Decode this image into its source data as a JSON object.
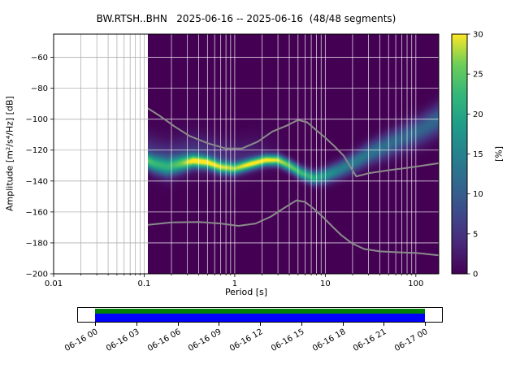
{
  "chart_data": {
    "type": "heatmap",
    "subtype": "ppsd-probabilistic-power-spectral-density",
    "title": "BW.RTSH..BHN   2025-06-16 -- 2025-06-16  (48/48 segments)",
    "station": "BW.RTSH..BHN",
    "date_start": "2025-06-16",
    "date_end": "2025-06-16",
    "segments": "48/48",
    "xlabel": "Period [s]",
    "ylabel": "Amplitude [m²/s⁴/Hz] [dB]",
    "xscale": "log",
    "xlim": [
      0.01,
      179
    ],
    "ylim": [
      -200,
      -45
    ],
    "x_ticks": [
      0.01,
      0.1,
      1,
      10,
      100
    ],
    "x_tick_labels": [
      "0.01",
      "0.1",
      "1",
      "10",
      "100"
    ],
    "y_ticks": [
      -60,
      -80,
      -100,
      -120,
      -140,
      -160,
      -180,
      -200
    ],
    "y_tick_labels": [
      "−60",
      "−80",
      "−100",
      "−120",
      "−140",
      "−160",
      "−180",
      "−200"
    ],
    "grid": true,
    "background_value_color": "#440154",
    "colorbar": {
      "label": "[%]",
      "range": [
        0,
        30
      ],
      "ticks": [
        0,
        5,
        10,
        15,
        20,
        25,
        30
      ],
      "colormap": "viridis",
      "stops": [
        [
          0,
          "#440154"
        ],
        [
          0.125,
          "#482878"
        ],
        [
          0.25,
          "#3e4989"
        ],
        [
          0.375,
          "#31688e"
        ],
        [
          0.5,
          "#26828e"
        ],
        [
          0.625,
          "#1f9e89"
        ],
        [
          0.75,
          "#35b779"
        ],
        [
          0.875,
          "#6ece58"
        ],
        [
          1,
          "#fde725"
        ]
      ]
    },
    "psd_distribution": {
      "comment": "mode ridge of the 2D histogram: [period_s, mode_dB, sigma_dB, peak_percent]",
      "start_period": 0.11,
      "points": [
        [
          0.1,
          -126.0,
          3.2,
          22
        ],
        [
          0.13,
          -129.0,
          3.8,
          19
        ],
        [
          0.18,
          -131.0,
          4.2,
          18
        ],
        [
          0.25,
          -129.0,
          3.6,
          22
        ],
        [
          0.35,
          -127.0,
          3.0,
          28
        ],
        [
          0.5,
          -128.0,
          2.8,
          28
        ],
        [
          0.7,
          -131.0,
          2.8,
          26
        ],
        [
          1.0,
          -132.0,
          2.6,
          25
        ],
        [
          1.5,
          -129.0,
          2.5,
          29
        ],
        [
          2.2,
          -126.5,
          2.5,
          30
        ],
        [
          3.0,
          -126.5,
          2.5,
          29
        ],
        [
          4.0,
          -130.0,
          2.6,
          26
        ],
        [
          5.5,
          -135.0,
          2.8,
          23
        ],
        [
          7.5,
          -138.0,
          3.0,
          21
        ],
        [
          10.0,
          -136.5,
          3.4,
          18
        ],
        [
          14.0,
          -133.0,
          3.8,
          15
        ],
        [
          20.0,
          -128.5,
          4.2,
          14
        ],
        [
          30.0,
          -122.5,
          4.8,
          13
        ],
        [
          50.0,
          -116.5,
          5.4,
          12
        ],
        [
          80.0,
          -111.0,
          5.8,
          11
        ],
        [
          120.0,
          -106.0,
          6.2,
          11
        ],
        [
          179.0,
          -100.0,
          6.6,
          11
        ]
      ]
    },
    "halo": {
      "comment": "faint scatter above the mode at short periods: [period_s, peak_percent]",
      "offset": 6,
      "sigma": 8,
      "points": [
        [
          0.1,
          5
        ],
        [
          0.35,
          5
        ],
        [
          0.8,
          4.5
        ],
        [
          1.5,
          3
        ],
        [
          2.5,
          1
        ],
        [
          4.0,
          0
        ],
        [
          179,
          0
        ]
      ]
    },
    "noise_models": {
      "comment": "Peterson NHNM/NLNM reference curves [period_s, dB]",
      "color": "#8b8b8b",
      "high": [
        [
          0.11,
          -93
        ],
        [
          0.15,
          -98
        ],
        [
          0.22,
          -105
        ],
        [
          0.32,
          -111
        ],
        [
          0.5,
          -115.5
        ],
        [
          0.8,
          -119
        ],
        [
          1.2,
          -119
        ],
        [
          1.8,
          -114.5
        ],
        [
          2.6,
          -108
        ],
        [
          3.8,
          -104
        ],
        [
          5.0,
          -100.5
        ],
        [
          6.3,
          -102
        ],
        [
          7.9,
          -107
        ],
        [
          10,
          -112
        ],
        [
          12.6,
          -117.5
        ],
        [
          15.9,
          -123.5
        ],
        [
          22,
          -137
        ],
        [
          30,
          -135
        ],
        [
          50,
          -133
        ],
        [
          80,
          -131.5
        ],
        [
          120,
          -130
        ],
        [
          179,
          -128.5
        ]
      ],
      "low": [
        [
          0.11,
          -168.3
        ],
        [
          0.2,
          -166.8
        ],
        [
          0.4,
          -166.5
        ],
        [
          0.7,
          -167.5
        ],
        [
          1.1,
          -169
        ],
        [
          1.7,
          -167.5
        ],
        [
          2.5,
          -163
        ],
        [
          3.5,
          -157.5
        ],
        [
          4.8,
          -152.5
        ],
        [
          6.0,
          -153.5
        ],
        [
          7.5,
          -158
        ],
        [
          9.5,
          -163.5
        ],
        [
          12,
          -169.5
        ],
        [
          15,
          -175
        ],
        [
          20,
          -180.5
        ],
        [
          27,
          -184
        ],
        [
          40,
          -185.5
        ],
        [
          60,
          -186
        ],
        [
          100,
          -186.5
        ],
        [
          179,
          -188
        ]
      ]
    },
    "timeline": {
      "labels": [
        "06-16 00",
        "06-16 03",
        "06-16 06",
        "06-16 09",
        "06-16 12",
        "06-16 15",
        "06-16 18",
        "06-16 21",
        "06-17 00"
      ],
      "coverage_top_color": "#008000",
      "coverage_bottom_color": "#0000ff"
    }
  }
}
